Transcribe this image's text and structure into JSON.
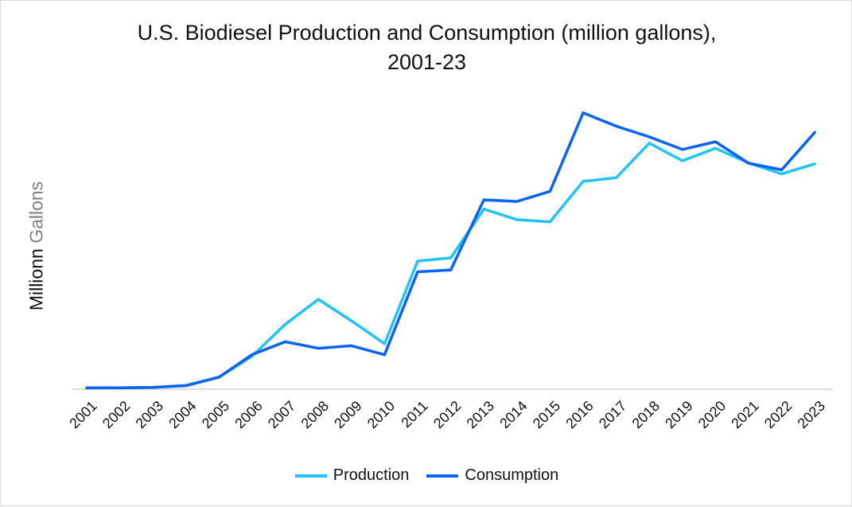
{
  "chart_data": {
    "type": "line",
    "title": "U.S. Biodiesel Production and Consumption (million gallons),",
    "title_line2": "2001-23",
    "xlabel": "",
    "ylabel_part1": "Millionn ",
    "ylabel_part2": "Gallons",
    "ylim": [
      0,
      2000
    ],
    "grid": false,
    "legend_position": "bottom",
    "categories": [
      "2001",
      "2002",
      "2003",
      "2004",
      "2005",
      "2006",
      "2007",
      "2008",
      "2009",
      "2010",
      "2011",
      "2012",
      "2013",
      "2014",
      "2015",
      "2016",
      "2017",
      "2018",
      "2019",
      "2020",
      "2021",
      "2022",
      "2023"
    ],
    "series": [
      {
        "name": "Production",
        "color": "#22c4f4",
        "values": [
          9,
          11,
          14,
          28,
          91,
          250,
          490,
          678,
          516,
          343,
          967,
          991,
          1359,
          1279,
          1263,
          1568,
          1596,
          1857,
          1724,
          1818,
          1707,
          1625,
          1700
        ]
      },
      {
        "name": "Consumption",
        "color": "#0b63f0",
        "values": [
          10,
          11,
          14,
          27,
          91,
          261,
          358,
          309,
          328,
          260,
          886,
          899,
          1429,
          1417,
          1493,
          2085,
          1985,
          1904,
          1809,
          1867,
          1705,
          1655,
          1938
        ]
      }
    ]
  }
}
